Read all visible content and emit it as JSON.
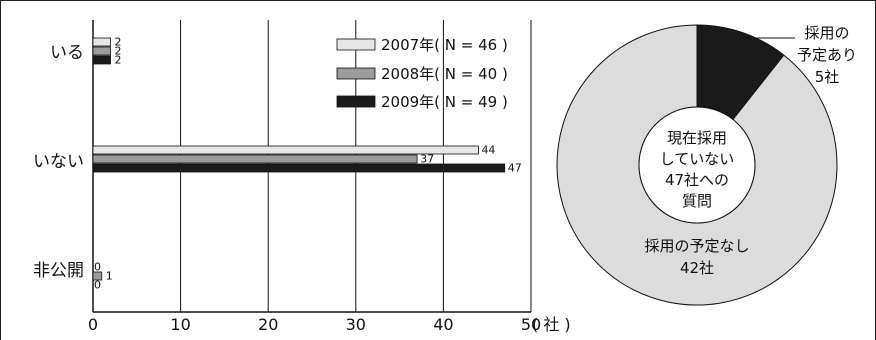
{
  "chart_data": [
    {
      "type": "bar",
      "orientation": "horizontal",
      "categories": [
        "いる",
        "いない",
        "非公開"
      ],
      "series": [
        {
          "name": "2007年( N = 46 )",
          "values": [
            2,
            44,
            0
          ],
          "color": "#e6e6e6"
        },
        {
          "name": "2008年( N = 40 )",
          "values": [
            2,
            37,
            1
          ],
          "color": "#9c9c9c"
        },
        {
          "name": "2009年( N = 49 )",
          "values": [
            2,
            47,
            0
          ],
          "color": "#1a1a1a"
        }
      ],
      "xlim": [
        0,
        50
      ],
      "xticks": [
        "0",
        "10",
        "20",
        "30",
        "40",
        "50"
      ],
      "xunit": "( 社 )",
      "grid": true,
      "legend_position": "top-right"
    },
    {
      "type": "pie",
      "center_label": [
        "現在採用",
        "していない",
        "47社への",
        "質問"
      ],
      "slices": [
        {
          "label": [
            "採用の",
            "予定あり",
            "5社"
          ],
          "value": 5,
          "color": "#1a1a1a"
        },
        {
          "label": [
            "採用の予定なし",
            "42社"
          ],
          "value": 42,
          "color": "#dcdcdc"
        }
      ]
    }
  ]
}
